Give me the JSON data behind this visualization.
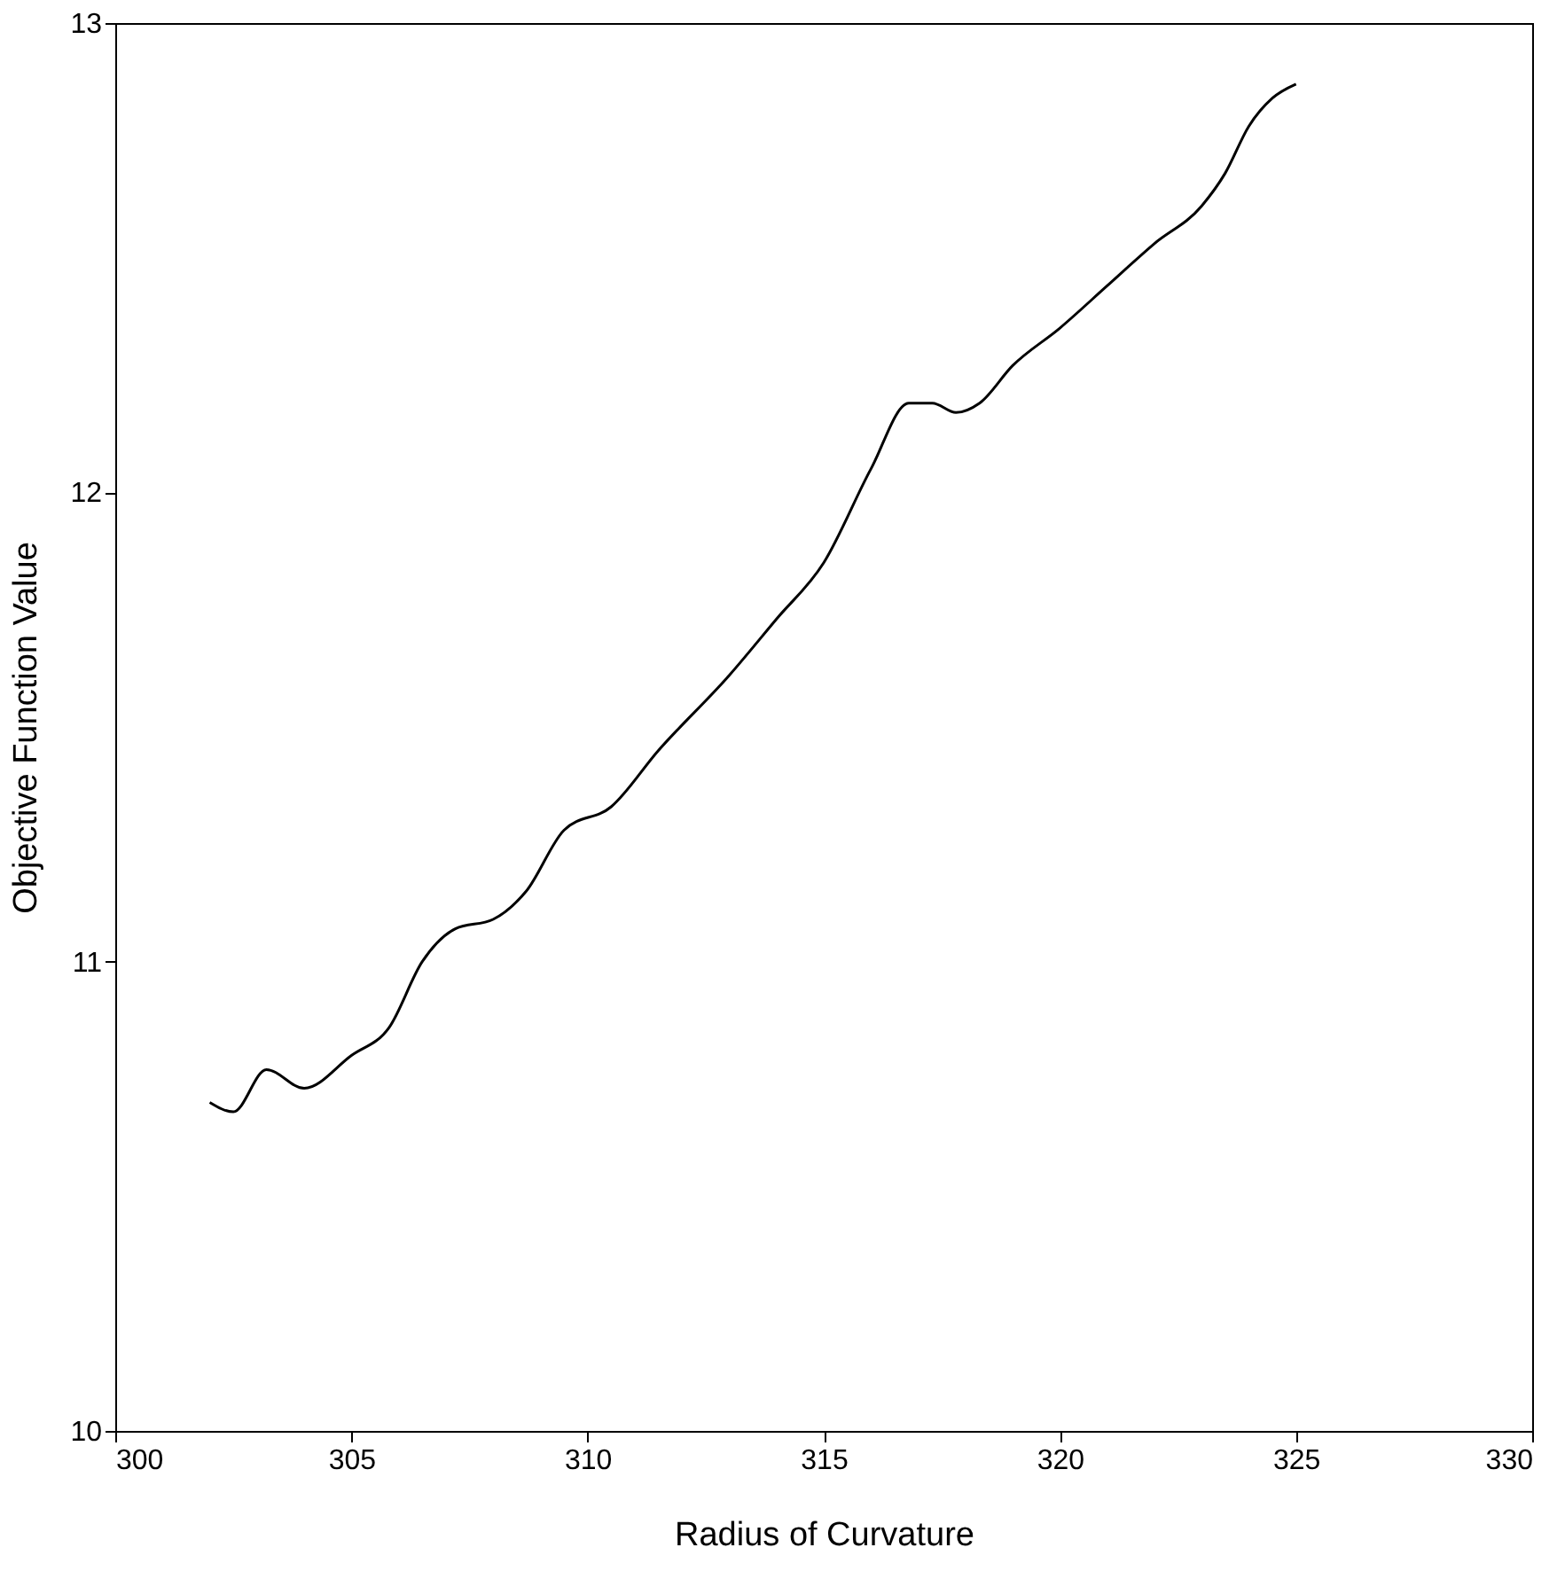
{
  "chart_data": {
    "type": "line",
    "xlabel": "Radius of Curvature",
    "ylabel": "Objective Function Value",
    "xlim": [
      300,
      330
    ],
    "xticks": [
      300,
      305,
      310,
      315,
      320,
      325,
      330
    ],
    "ylim": [
      10,
      13
    ],
    "yticks": [
      10,
      11,
      12,
      13
    ],
    "grid": false,
    "marker": "none",
    "line_style": "solid",
    "series": [
      {
        "color": "#000000",
        "x": [
          302,
          302.5,
          303.2,
          304,
          305,
          305.8,
          306.5,
          307.2,
          308,
          308.7,
          309.5,
          310.5,
          311.5,
          313,
          314,
          315,
          316,
          316.8,
          317.3,
          317.8,
          318.3,
          319,
          320,
          321,
          322,
          323,
          323.5,
          324,
          324.5,
          325
        ],
        "values": [
          10.7,
          10.68,
          10.77,
          10.73,
          10.8,
          10.86,
          11.0,
          11.07,
          11.09,
          11.15,
          11.28,
          11.33,
          11.45,
          11.61,
          11.73,
          11.85,
          12.05,
          12.19,
          12.19,
          12.17,
          12.19,
          12.27,
          12.35,
          12.44,
          12.53,
          12.61,
          12.68,
          12.78,
          12.84,
          12.87
        ]
      }
    ]
  }
}
